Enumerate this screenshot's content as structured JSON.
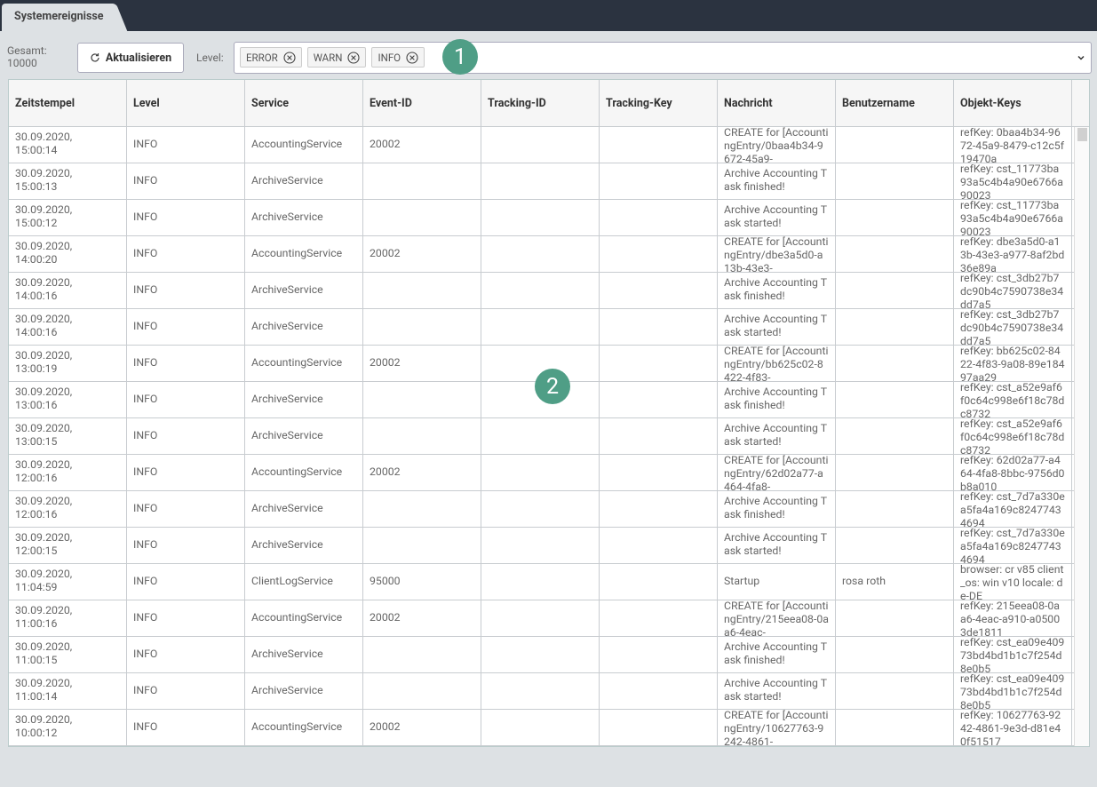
{
  "tab": {
    "title": "Systemereignisse"
  },
  "toolbar": {
    "total_label": "Gesamt:",
    "total_value": "10000",
    "refresh_button": "Aktualisieren",
    "level_label": "Level:",
    "level_chips": [
      "ERROR",
      "WARN",
      "INFO"
    ]
  },
  "callouts": [
    "1",
    "2"
  ],
  "table": {
    "headers": [
      "Zeitstempel",
      "Level",
      "Service",
      "Event-ID",
      "Tracking-ID",
      "Tracking-Key",
      "Nachricht",
      "Benutzername",
      "Objekt-Keys"
    ],
    "rows": [
      [
        "30.09.2020, 15:00:14",
        "INFO",
        "AccountingService",
        "20002",
        null,
        null,
        "CREATE for [AccountingEntry/0baa4b34-9672-45a9-",
        null,
        "refKey: 0baa4b34-9672-45a9-8479-c12c5f19470a"
      ],
      [
        "30.09.2020, 15:00:13",
        "INFO",
        "ArchiveService",
        null,
        null,
        null,
        "Archive Accounting Task finished!",
        null,
        "refKey: cst_11773ba93a5c4b4a90e6766a90023"
      ],
      [
        "30.09.2020, 15:00:12",
        "INFO",
        "ArchiveService",
        null,
        null,
        null,
        "Archive Accounting Task started!",
        null,
        "refKey: cst_11773ba93a5c4b4a90e6766a90023"
      ],
      [
        "30.09.2020, 14:00:20",
        "INFO",
        "AccountingService",
        "20002",
        null,
        null,
        "CREATE for [AccountingEntry/dbe3a5d0-a13b-43e3-",
        null,
        "refKey: dbe3a5d0-a13b-43e3-a977-8af2bd36e89a"
      ],
      [
        "30.09.2020, 14:00:16",
        "INFO",
        "ArchiveService",
        null,
        null,
        null,
        "Archive Accounting Task finished!",
        null,
        "refKey: cst_3db27b7dc90b4c7590738e34dd7a5"
      ],
      [
        "30.09.2020, 14:00:16",
        "INFO",
        "ArchiveService",
        null,
        null,
        null,
        "Archive Accounting Task started!",
        null,
        "refKey: cst_3db27b7dc90b4c7590738e34dd7a5"
      ],
      [
        "30.09.2020, 13:00:19",
        "INFO",
        "AccountingService",
        "20002",
        null,
        null,
        "CREATE for [AccountingEntry/bb625c02-8422-4f83-",
        null,
        "refKey: bb625c02-8422-4f83-9a08-89e18497aa29"
      ],
      [
        "30.09.2020, 13:00:16",
        "INFO",
        "ArchiveService",
        null,
        null,
        null,
        "Archive Accounting Task finished!",
        null,
        "refKey: cst_a52e9af6f0c64c998e6f18c78dc8732"
      ],
      [
        "30.09.2020, 13:00:15",
        "INFO",
        "ArchiveService",
        null,
        null,
        null,
        "Archive Accounting Task started!",
        null,
        "refKey: cst_a52e9af6f0c64c998e6f18c78dc8732"
      ],
      [
        "30.09.2020, 12:00:16",
        "INFO",
        "AccountingService",
        "20002",
        null,
        null,
        "CREATE for [AccountingEntry/62d02a77-a464-4fa8-",
        null,
        "refKey: 62d02a77-a464-4fa8-8bbc-9756d0b8a010"
      ],
      [
        "30.09.2020, 12:00:16",
        "INFO",
        "ArchiveService",
        null,
        null,
        null,
        "Archive Accounting Task finished!",
        null,
        "refKey: cst_7d7a330ea5fa4a169c82477434694"
      ],
      [
        "30.09.2020, 12:00:15",
        "INFO",
        "ArchiveService",
        null,
        null,
        null,
        "Archive Accounting Task started!",
        null,
        "refKey: cst_7d7a330ea5fa4a169c82477434694"
      ],
      [
        "30.09.2020, 11:04:59",
        "INFO",
        "ClientLogService",
        "95000",
        null,
        null,
        "Startup",
        "rosa roth",
        "browser: cr v85 client_os: win v10 locale: de-DE"
      ],
      [
        "30.09.2020, 11:00:16",
        "INFO",
        "AccountingService",
        "20002",
        null,
        null,
        "CREATE for [AccountingEntry/215eea08-0aa6-4eac-",
        null,
        "refKey: 215eea08-0aa6-4eac-a910-a05003de1811"
      ],
      [
        "30.09.2020, 11:00:15",
        "INFO",
        "ArchiveService",
        null,
        null,
        null,
        "Archive Accounting Task finished!",
        null,
        "refKey: cst_ea09e40973bd4bd1b1c7f254d8e0b5"
      ],
      [
        "30.09.2020, 11:00:14",
        "INFO",
        "ArchiveService",
        null,
        null,
        null,
        "Archive Accounting Task started!",
        null,
        "refKey: cst_ea09e40973bd4bd1b1c7f254d8e0b5"
      ],
      [
        "30.09.2020, 10:00:12",
        "INFO",
        "AccountingService",
        "20002",
        null,
        null,
        "CREATE for [AccountingEntry/10627763-9242-4861-",
        null,
        "refKey: 10627763-9242-4861-9e3d-d81e40f51517"
      ]
    ]
  }
}
